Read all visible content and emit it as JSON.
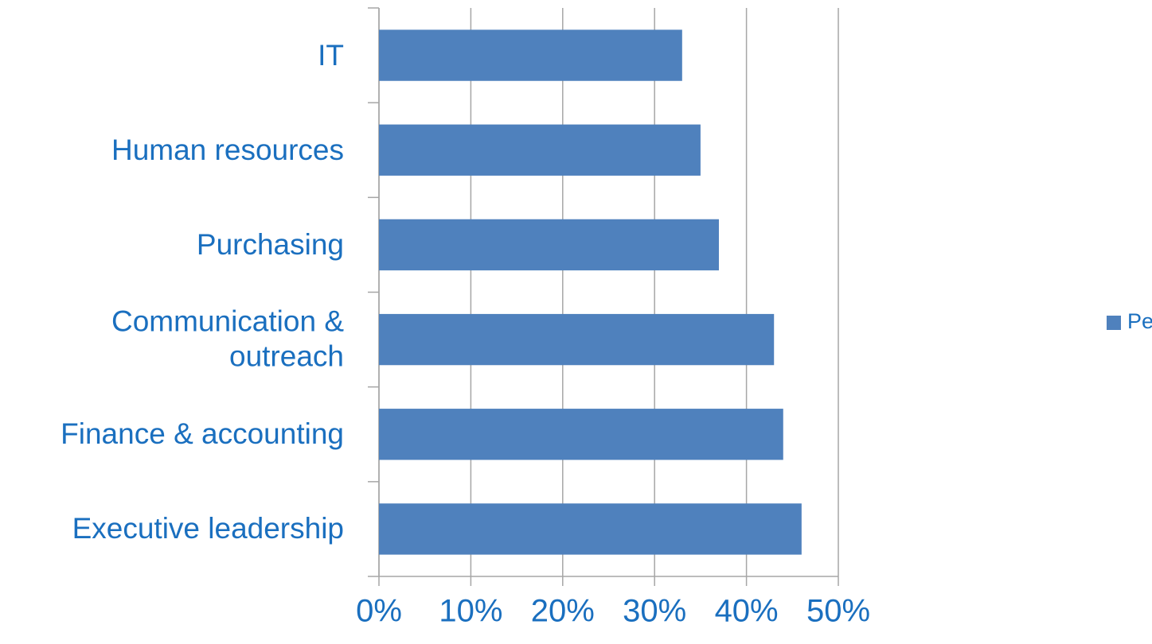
{
  "chart_data": {
    "type": "bar",
    "orientation": "horizontal",
    "categories": [
      "IT",
      "Human resources",
      "Purchasing",
      "Communication & outreach",
      "Finance & accounting",
      "Executive leadership"
    ],
    "series": [
      {
        "name": "Percent reporting",
        "color": "#4f81bd",
        "values": [
          33,
          35,
          37,
          43,
          44,
          46
        ]
      }
    ],
    "xlim": [
      0,
      50
    ],
    "xticks": [
      {
        "value": 0,
        "label": "0%"
      },
      {
        "value": 10,
        "label": "10%"
      },
      {
        "value": 20,
        "label": "20%"
      },
      {
        "value": 30,
        "label": "30%"
      },
      {
        "value": 40,
        "label": "40%"
      },
      {
        "value": 50,
        "label": "50%"
      }
    ],
    "grid": true,
    "legend": "right"
  }
}
